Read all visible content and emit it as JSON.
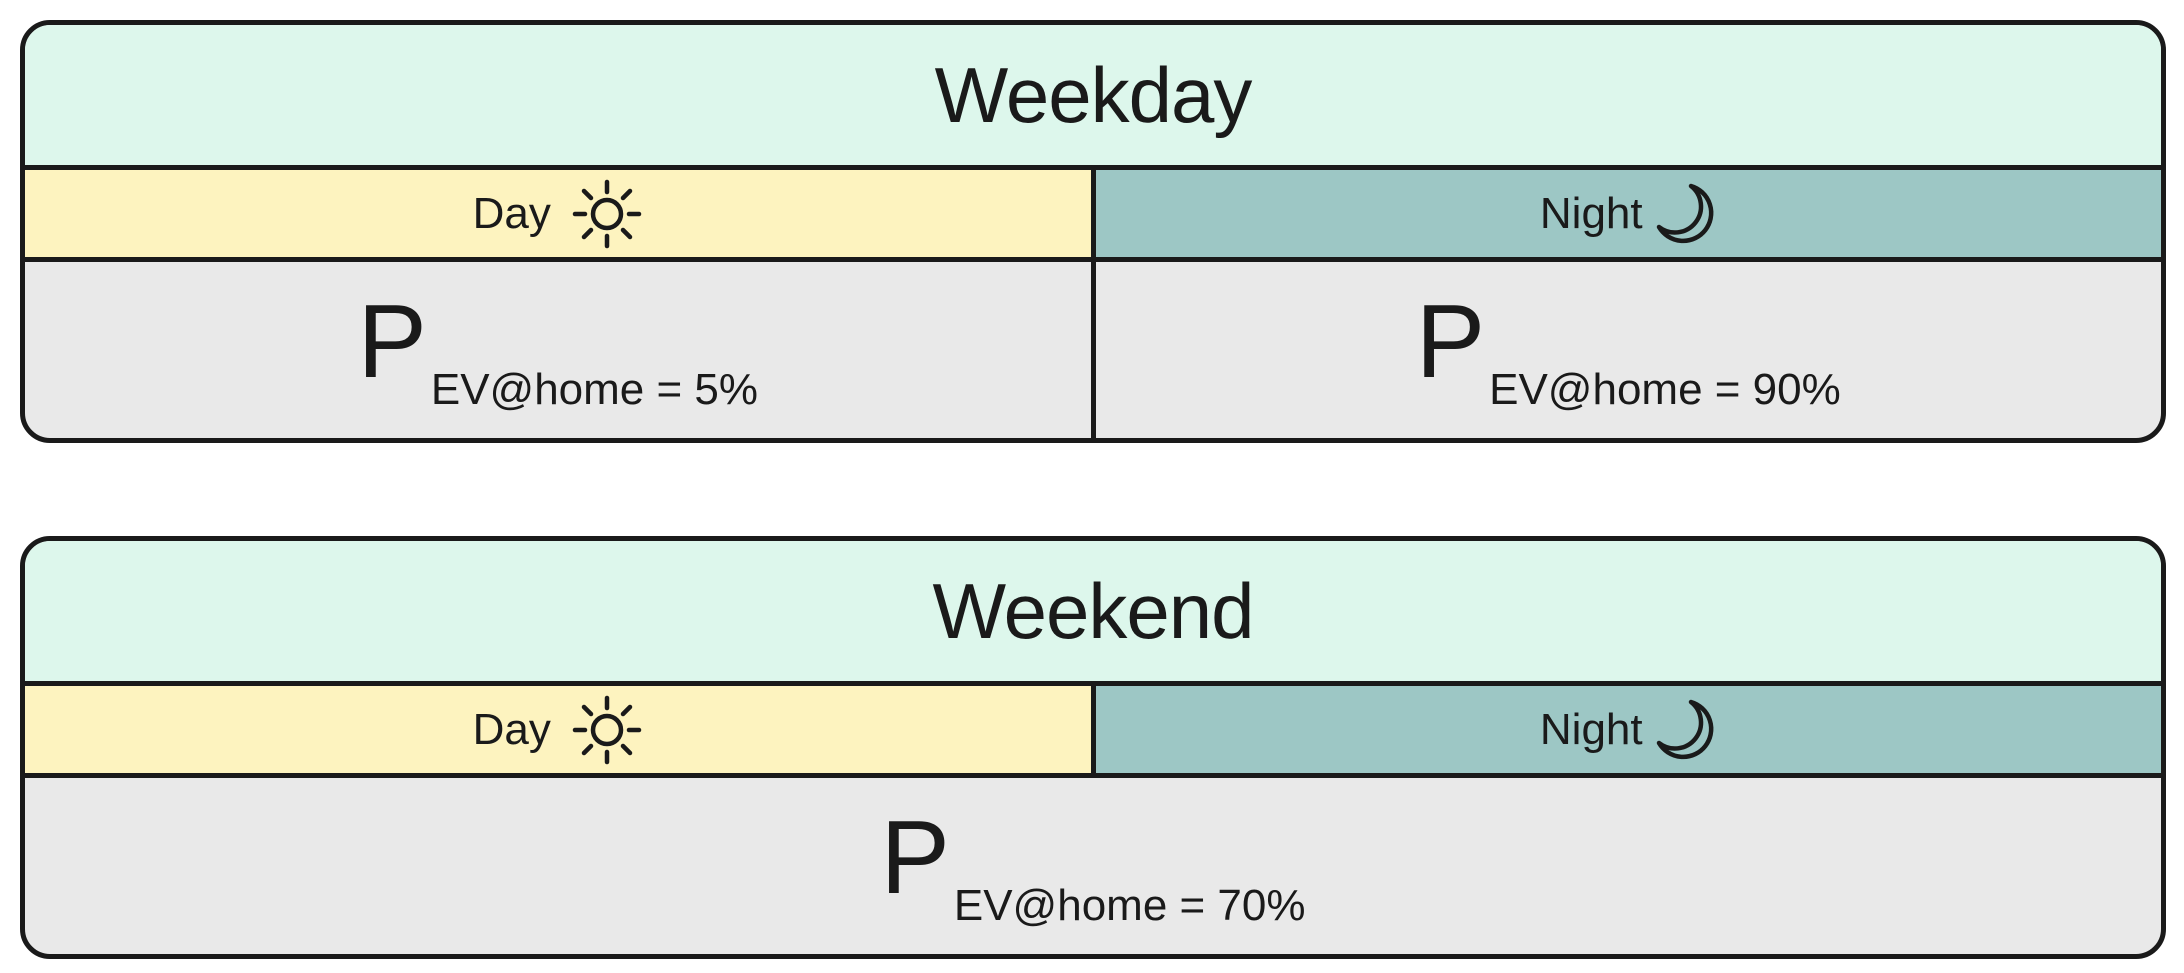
{
  "panels": [
    {
      "title": "Weekday",
      "day_label": "Day",
      "night_label": "Night",
      "day_icon": "sun-icon",
      "night_icon": "moon-icon",
      "probabilities": [
        {
          "symbol": "P",
          "subscript": "EV@home = 5%"
        },
        {
          "symbol": "P",
          "subscript": "EV@home = 90%"
        }
      ]
    },
    {
      "title": "Weekend",
      "day_label": "Day",
      "night_label": "Night",
      "day_icon": "sun-icon",
      "night_icon": "moon-icon",
      "probabilities": [
        {
          "symbol": "P",
          "subscript": "EV@home = 70%"
        }
      ]
    }
  ],
  "colors": {
    "title_bg": "#ddf7ec",
    "day_bg": "#fdf3bf",
    "night_bg": "#9dc7c5",
    "cell_bg": "#e9e9e9",
    "border": "#1a1a1a"
  }
}
